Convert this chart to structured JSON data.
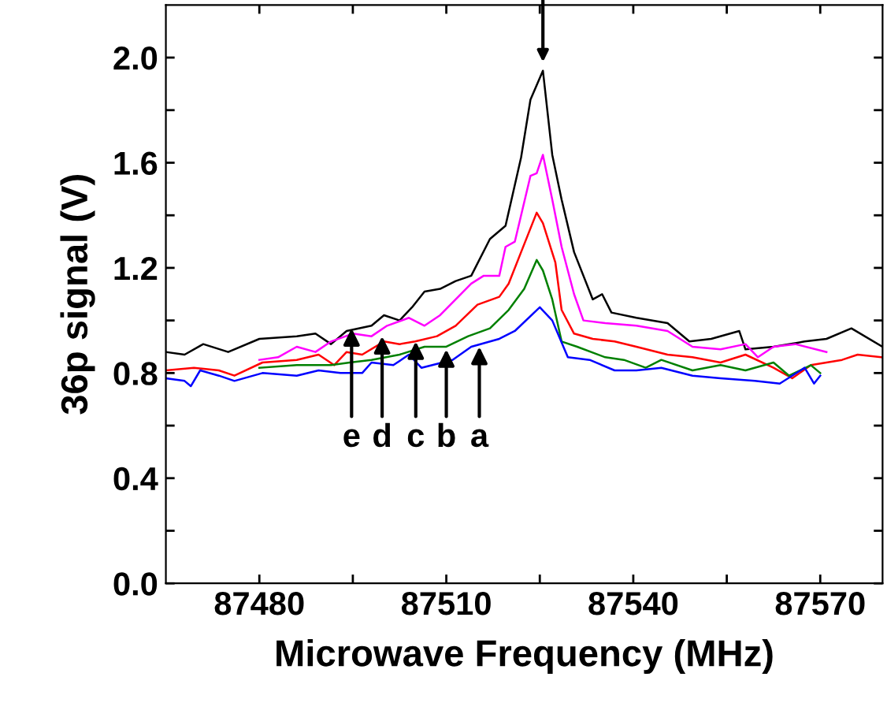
{
  "chart_data": {
    "type": "line",
    "xlabel": "Microwave Frequency (MHz)",
    "ylabel": "36p signal (V)",
    "xlim": [
      87465,
      87580
    ],
    "ylim": [
      0,
      2.2
    ],
    "xticks": [
      87480,
      {
        "value": 87495,
        "label": null
      },
      87510,
      {
        "value": 87525,
        "label": null
      },
      87540,
      {
        "value": 87555,
        "label": null
      },
      87570
    ],
    "yticks": [
      {
        "value": 0.0,
        "label": "0.0"
      },
      {
        "value": 0.2,
        "label": null
      },
      {
        "value": 0.4,
        "label": "0.4"
      },
      {
        "value": 0.6,
        "label": null
      },
      {
        "value": 0.8,
        "label": "0.8"
      },
      {
        "value": 1.0,
        "label": null
      },
      {
        "value": 1.2,
        "label": "1.2"
      },
      {
        "value": 1.4,
        "label": null
      },
      {
        "value": 1.6,
        "label": "1.6"
      },
      {
        "value": 1.8,
        "label": null
      },
      {
        "value": 2.0,
        "label": "2.0"
      }
    ],
    "marker": "none",
    "line_style": "solid",
    "series": [
      {
        "color": "#000000",
        "x": [
          87465,
          87468,
          87471,
          87475,
          87480,
          87486,
          87489,
          87491.5,
          87494,
          87498,
          87500,
          87502.5,
          87504.5,
          87506.5,
          87509,
          87511.5,
          87514,
          87517,
          87519.5,
          87522,
          87523.5,
          87525.5,
          87527,
          87528.5,
          87530.5,
          87533.5,
          87535,
          87536.5,
          87540.5,
          87545.5,
          87549,
          87552.5,
          87557,
          87558,
          87562.5,
          87567.5,
          87571,
          87575,
          87580
        ],
        "values": [
          0.88,
          0.87,
          0.91,
          0.88,
          0.93,
          0.94,
          0.95,
          0.91,
          0.96,
          0.98,
          1.02,
          1.0,
          1.05,
          1.11,
          1.12,
          1.15,
          1.17,
          1.31,
          1.36,
          1.62,
          1.84,
          1.95,
          1.63,
          1.46,
          1.26,
          1.08,
          1.1,
          1.03,
          1.01,
          0.99,
          0.92,
          0.93,
          0.96,
          0.89,
          0.9,
          0.92,
          0.93,
          0.97,
          0.9
        ]
      },
      {
        "color": "#ff00ff",
        "x": [
          87480,
          87483,
          87486,
          87489,
          87491.5,
          87495,
          87498,
          87500.5,
          87504,
          87506.5,
          87509,
          87511.5,
          87514,
          87516,
          87518.5,
          87519.5,
          87521,
          87523.5,
          87524.5,
          87525.5,
          87527,
          87528.5,
          87530.5,
          87532,
          87535.5,
          87540.5,
          87545.5,
          87549.5,
          87554,
          87558,
          87560,
          87562.5,
          87566,
          87571
        ],
        "values": [
          0.85,
          0.86,
          0.9,
          0.88,
          0.92,
          0.95,
          0.94,
          0.98,
          1.01,
          0.98,
          1.02,
          1.08,
          1.14,
          1.17,
          1.17,
          1.28,
          1.3,
          1.55,
          1.56,
          1.63,
          1.46,
          1.28,
          1.1,
          1.0,
          0.99,
          0.98,
          0.96,
          0.9,
          0.89,
          0.91,
          0.86,
          0.9,
          0.91,
          0.88
        ]
      },
      {
        "color": "#ff0000",
        "x": [
          87465,
          87469.5,
          87473.5,
          87476,
          87480.5,
          87486,
          87489.5,
          87492,
          87494,
          87496.5,
          87500,
          87502.5,
          87505,
          87508.5,
          87511.5,
          87515,
          87518.5,
          87520,
          87522,
          87524.5,
          87525.5,
          87527.5,
          87528.5,
          87530.5,
          87533.5,
          87537,
          87540.5,
          87545.5,
          87549.5,
          87554,
          87558,
          87562.5,
          87565.5,
          87568.5,
          87573.5,
          87576,
          87580
        ],
        "values": [
          0.81,
          0.82,
          0.81,
          0.79,
          0.84,
          0.85,
          0.87,
          0.83,
          0.88,
          0.87,
          0.92,
          0.91,
          0.92,
          0.94,
          0.98,
          1.06,
          1.09,
          1.14,
          1.26,
          1.41,
          1.37,
          1.22,
          1.04,
          0.95,
          0.93,
          0.92,
          0.9,
          0.87,
          0.86,
          0.84,
          0.87,
          0.82,
          0.78,
          0.83,
          0.85,
          0.87,
          0.86
        ]
      },
      {
        "color": "#008000",
        "x": [
          87480,
          87486,
          87491.5,
          87494.5,
          87498,
          87502.5,
          87506.5,
          87510,
          87513.5,
          87517,
          87520,
          87522.5,
          87524.5,
          87525.5,
          87527,
          87528.5,
          87531,
          87535.5,
          87538.5,
          87542,
          87544.5,
          87549.5,
          87554,
          87558,
          87562.5,
          87565,
          87568.5,
          87570
        ],
        "values": [
          0.82,
          0.83,
          0.83,
          0.84,
          0.85,
          0.87,
          0.9,
          0.9,
          0.94,
          0.97,
          1.04,
          1.12,
          1.23,
          1.19,
          1.08,
          0.92,
          0.9,
          0.86,
          0.85,
          0.82,
          0.85,
          0.81,
          0.83,
          0.81,
          0.84,
          0.79,
          0.83,
          0.8
        ]
      },
      {
        "color": "#0000ff",
        "x": [
          87465,
          87468,
          87469,
          87470.5,
          87473.5,
          87476,
          87480.5,
          87486,
          87489.5,
          87493,
          87496.5,
          87498,
          87501.5,
          87504,
          87506,
          87511,
          87514,
          87518.5,
          87521,
          87525,
          87527,
          87529.5,
          87533,
          87537,
          87540.5,
          87544.5,
          87549.5,
          87554,
          87559.5,
          87563.5,
          87567.5,
          87569,
          87570
        ],
        "values": [
          0.78,
          0.77,
          0.75,
          0.81,
          0.79,
          0.77,
          0.8,
          0.79,
          0.81,
          0.8,
          0.8,
          0.84,
          0.83,
          0.87,
          0.82,
          0.85,
          0.9,
          0.93,
          0.96,
          1.05,
          1.0,
          0.86,
          0.85,
          0.81,
          0.81,
          0.82,
          0.79,
          0.78,
          0.77,
          0.76,
          0.82,
          0.76,
          0.79
        ]
      }
    ],
    "annotations": [
      {
        "text": "e",
        "x": 87494.8,
        "y": 0.97
      },
      {
        "text": "d",
        "x": 87499.7,
        "y": 0.94
      },
      {
        "text": "c",
        "x": 87505.1,
        "y": 0.92
      },
      {
        "text": "b",
        "x": 87510,
        "y": 0.89
      },
      {
        "text": "a",
        "x": 87515.3,
        "y": 0.9
      }
    ]
  }
}
